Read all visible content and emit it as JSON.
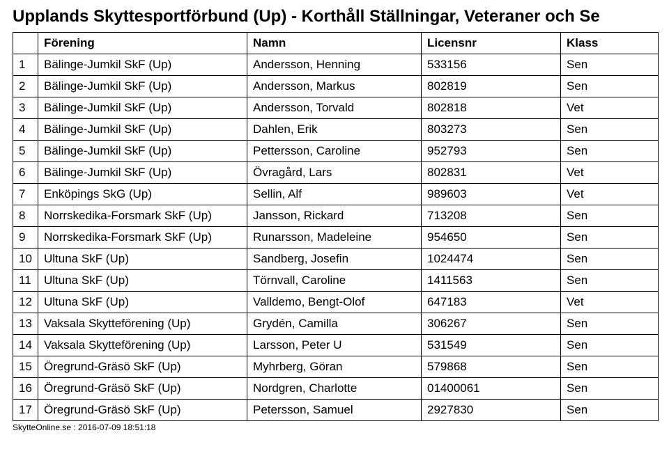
{
  "title": "Upplands Skyttesportförbund (Up) - Korthåll Ställningar, Veteraner och Se",
  "headers": {
    "blank": "",
    "forening": "Förening",
    "namn": "Namn",
    "licensnr": "Licensnr",
    "klass": "Klass"
  },
  "rows": [
    {
      "n": "1",
      "club": "Bälinge-Jumkil SkF (Up)",
      "name": "Andersson, Henning",
      "lic": "533156",
      "klass": "Sen"
    },
    {
      "n": "2",
      "club": "Bälinge-Jumkil SkF (Up)",
      "name": "Andersson, Markus",
      "lic": "802819",
      "klass": "Sen"
    },
    {
      "n": "3",
      "club": "Bälinge-Jumkil SkF (Up)",
      "name": "Andersson, Torvald",
      "lic": "802818",
      "klass": "Vet"
    },
    {
      "n": "4",
      "club": "Bälinge-Jumkil SkF (Up)",
      "name": "Dahlen, Erik",
      "lic": "803273",
      "klass": "Sen"
    },
    {
      "n": "5",
      "club": "Bälinge-Jumkil SkF (Up)",
      "name": "Pettersson, Caroline",
      "lic": "952793",
      "klass": "Sen"
    },
    {
      "n": "6",
      "club": "Bälinge-Jumkil SkF (Up)",
      "name": "Övragård, Lars",
      "lic": "802831",
      "klass": "Vet"
    },
    {
      "n": "7",
      "club": "Enköpings SkG (Up)",
      "name": "Sellin, Alf",
      "lic": "989603",
      "klass": "Vet"
    },
    {
      "n": "8",
      "club": "Norrskedika-Forsmark SkF (Up)",
      "name": "Jansson, Rickard",
      "lic": "713208",
      "klass": "Sen"
    },
    {
      "n": "9",
      "club": "Norrskedika-Forsmark SkF (Up)",
      "name": "Runarsson, Madeleine",
      "lic": "954650",
      "klass": "Sen"
    },
    {
      "n": "10",
      "club": "Ultuna SkF (Up)",
      "name": "Sandberg, Josefin",
      "lic": "1024474",
      "klass": "Sen"
    },
    {
      "n": "11",
      "club": "Ultuna SkF (Up)",
      "name": "Törnvall, Caroline",
      "lic": "1411563",
      "klass": "Sen"
    },
    {
      "n": "12",
      "club": "Ultuna SkF (Up)",
      "name": "Valldemo, Bengt-Olof",
      "lic": "647183",
      "klass": "Vet"
    },
    {
      "n": "13",
      "club": "Vaksala Skytteförening (Up)",
      "name": "Grydén, Camilla",
      "lic": "306267",
      "klass": "Sen"
    },
    {
      "n": "14",
      "club": "Vaksala Skytteförening (Up)",
      "name": "Larsson, Peter U",
      "lic": "531549",
      "klass": "Sen"
    },
    {
      "n": "15",
      "club": "Öregrund-Gräsö SkF (Up)",
      "name": "Myhrberg, Göran",
      "lic": "579868",
      "klass": "Sen"
    },
    {
      "n": "16",
      "club": "Öregrund-Gräsö SkF (Up)",
      "name": "Nordgren, Charlotte",
      "lic": "01400061",
      "klass": "Sen"
    },
    {
      "n": "17",
      "club": "Öregrund-Gräsö SkF (Up)",
      "name": "Petersson, Samuel",
      "lic": "2927830",
      "klass": "Sen"
    }
  ],
  "footer": "SkytteOnline.se : 2016-07-09 18:51:18"
}
